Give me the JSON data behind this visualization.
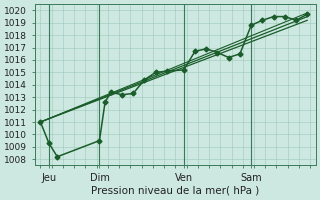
{
  "title": "",
  "xlabel": "Pression niveau de la mer( hPa )",
  "ylabel": "",
  "bg_color": "#cce8e0",
  "line_color": "#1a5c2a",
  "grid_color": "#9ec8b8",
  "ylim": [
    1007.5,
    1020.5
  ],
  "xlim": [
    -2,
    98
  ],
  "xtick_positions": [
    3,
    21,
    51,
    75
  ],
  "xtick_labels": [
    "Jeu",
    "Dim",
    "Ven",
    "Sam"
  ],
  "vlines": [
    3,
    21,
    51,
    75
  ],
  "ytick_positions": [
    1008,
    1009,
    1010,
    1011,
    1012,
    1013,
    1014,
    1015,
    1016,
    1017,
    1018,
    1019,
    1020
  ],
  "series_marked": {
    "x": [
      0,
      3,
      6,
      21,
      23,
      25,
      29,
      33,
      37,
      41,
      45,
      51,
      55,
      59,
      63,
      67,
      71,
      75,
      79,
      83,
      87,
      91,
      95
    ],
    "y": [
      1011.0,
      1009.3,
      1008.2,
      1009.5,
      1012.6,
      1013.4,
      1013.2,
      1013.3,
      1014.4,
      1015.0,
      1015.1,
      1015.2,
      1016.7,
      1016.9,
      1016.6,
      1016.2,
      1016.5,
      1018.8,
      1019.2,
      1019.5,
      1019.5,
      1019.2,
      1019.7
    ],
    "marker": "D",
    "markersize": 2.5,
    "linewidth": 1.1
  },
  "series_smooth": [
    {
      "x": [
        0,
        95
      ],
      "y": [
        1011.0,
        1019.5
      ],
      "linewidth": 0.9
    },
    {
      "x": [
        0,
        95
      ],
      "y": [
        1011.0,
        1019.2
      ],
      "linewidth": 0.9
    },
    {
      "x": [
        0,
        95
      ],
      "y": [
        1011.0,
        1019.8
      ],
      "linewidth": 0.8
    }
  ]
}
